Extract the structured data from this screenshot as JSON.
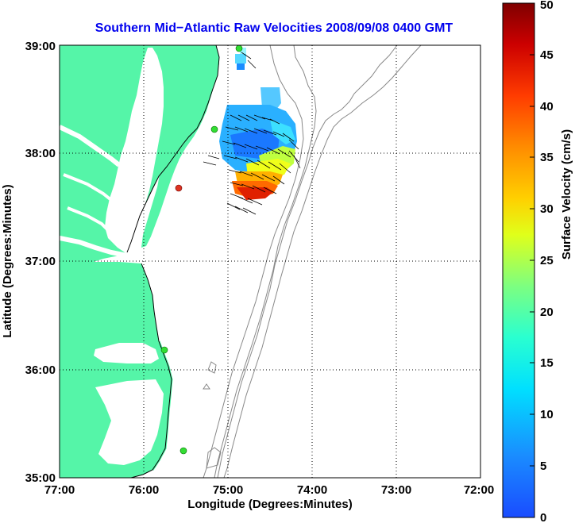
{
  "title": "Southern Mid−Atlantic Raw Velocities 2008/09/08 0400 GMT",
  "map": {
    "xlabel": "Longitude (Degrees:Minutes)",
    "ylabel": "Latitude (Degrees:Minutes)",
    "lon_range": [
      -77,
      -72
    ],
    "lat_range": [
      35,
      39
    ],
    "x_ticks": [
      "77:00",
      "76:00",
      "75:00",
      "74:00",
      "73:00",
      "72:00"
    ],
    "y_ticks": [
      "39:00",
      "38:00",
      "37:00",
      "36:00",
      "35:00"
    ],
    "grid": "dotted",
    "land_color": "#55f5a8",
    "water_color": "#ffffff",
    "bathymetry_color": "#888888"
  },
  "colorbar": {
    "label": "Surface Velocity (cm/s)",
    "range": [
      0,
      50
    ],
    "ticks": [
      "0",
      "5",
      "10",
      "15",
      "20",
      "25",
      "30",
      "35",
      "40",
      "45",
      "50"
    ],
    "colormap": "jet"
  },
  "stations": [
    {
      "lon": -75.12,
      "lat": 38.97,
      "color": "#33dd33"
    },
    {
      "lon": -75.17,
      "lat": 38.22,
      "color": "#33dd33"
    },
    {
      "lon": -75.55,
      "lat": 37.68,
      "color": "#dd3322"
    },
    {
      "lon": -75.62,
      "lat": 36.18,
      "color": "#33dd33"
    },
    {
      "lon": -75.53,
      "lat": 35.25,
      "color": "#33dd33"
    }
  ]
}
